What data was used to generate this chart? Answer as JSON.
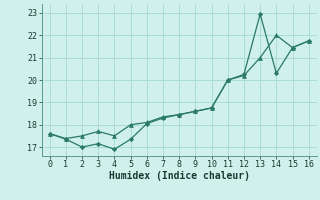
{
  "line1_x": [
    0,
    1,
    2,
    3,
    4,
    5,
    6,
    7,
    8,
    9,
    10,
    11,
    12,
    13,
    14,
    15,
    16
  ],
  "line1_y": [
    17.6,
    17.38,
    17.5,
    17.7,
    17.5,
    18.0,
    18.1,
    18.35,
    18.45,
    18.6,
    18.75,
    20.0,
    20.2,
    21.0,
    22.0,
    21.45,
    21.75
  ],
  "line2_x": [
    0,
    1,
    2,
    3,
    4,
    5,
    6,
    7,
    8,
    9,
    10,
    11,
    12,
    13,
    14,
    15,
    16
  ],
  "line2_y": [
    17.6,
    17.35,
    17.0,
    17.15,
    16.9,
    17.35,
    18.05,
    18.3,
    18.45,
    18.6,
    18.75,
    20.0,
    20.25,
    22.95,
    20.3,
    21.45,
    21.75
  ],
  "line_color": "#2a7a65",
  "bg_color": "#cff0eb",
  "grid_color": "#a8ddd6",
  "xlabel": "Humidex (Indice chaleur)",
  "ylim": [
    16.6,
    23.4
  ],
  "xlim": [
    -0.5,
    16.5
  ],
  "yticks": [
    17,
    18,
    19,
    20,
    21,
    22,
    23
  ],
  "xticks": [
    0,
    1,
    2,
    3,
    4,
    5,
    6,
    7,
    8,
    9,
    10,
    11,
    12,
    13,
    14,
    15,
    16
  ]
}
